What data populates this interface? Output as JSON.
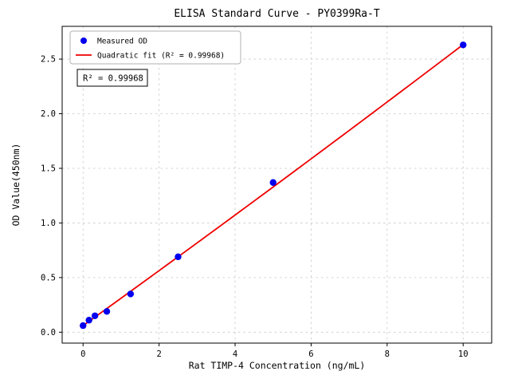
{
  "figure": {
    "background": "#ffffff"
  },
  "chart_data": {
    "type": "scatter",
    "title": "ELISA Standard Curve - PY0399Ra-T",
    "xlabel": "Rat TIMP-4 Concentration (ng/mL)",
    "ylabel": "OD Value(450nm)",
    "xlim": [
      -0.55,
      10.75
    ],
    "ylim": [
      -0.1,
      2.8
    ],
    "xticks": [
      0,
      2,
      4,
      6,
      8,
      10
    ],
    "yticks": [
      0.0,
      0.5,
      1.0,
      1.5,
      2.0,
      2.5
    ],
    "grid": true,
    "grid_color": "#c8c8c8",
    "legend_position": "upper-left",
    "series": [
      {
        "name": "Measured OD",
        "kind": "scatter",
        "color": "#0000ee",
        "marker": "circle",
        "x": [
          0,
          0.156,
          0.3125,
          0.625,
          1.25,
          2.5,
          5,
          10
        ],
        "y": [
          0.06,
          0.11,
          0.15,
          0.19,
          0.35,
          0.69,
          1.37,
          2.63
        ]
      },
      {
        "name": "Quadratic fit (R² = 0.99968)",
        "kind": "line",
        "color": "#ee0000",
        "fit": {
          "form": "quadratic",
          "a": 0.0007,
          "b": 0.2503,
          "c": 0.06,
          "x_start": 0,
          "x_end": 10
        }
      }
    ],
    "annotation": {
      "text": "R² = 0.99968"
    },
    "r_squared": "0.99968"
  }
}
